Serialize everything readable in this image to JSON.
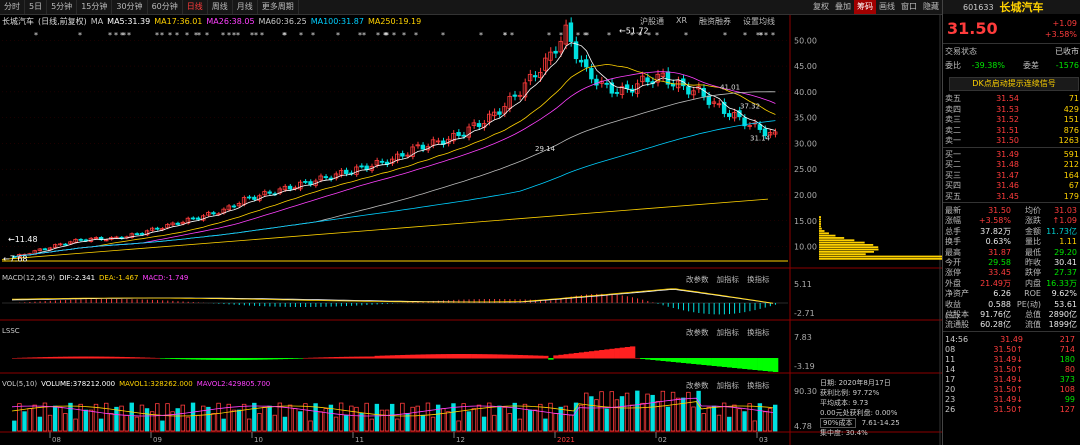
{
  "toolbar": {
    "tabs": [
      "分时",
      "5日",
      "5分钟",
      "15分钟",
      "30分钟",
      "60分钟",
      "日线",
      "周线",
      "月线",
      "更多周期"
    ],
    "active": "日线",
    "right": [
      "复权",
      "叠加",
      "筹码",
      "画线",
      "窗口",
      "隐藏"
    ]
  },
  "main": {
    "stock": "长城汽车",
    "mode": "(日线,前复权)",
    "ma": [
      {
        "label": "MA",
        "value": "",
        "color": "#c8c8c8"
      },
      {
        "label": "MA5:",
        "value": "31.39",
        "color": "#ffffff"
      },
      {
        "label": "MA17:",
        "value": "36.01",
        "color": "#ffd200"
      },
      {
        "label": "MA26:",
        "value": "38.05",
        "color": "#ff40ff"
      },
      {
        "label": "MA60:",
        "value": "36.25",
        "color": "#c8c8c8"
      },
      {
        "label": "MA100:",
        "value": "31.87",
        "color": "#00cfff"
      },
      {
        "label": "MA250:",
        "value": "19.19",
        "color": "#ffd200"
      }
    ],
    "links": [
      "沪股通",
      "XR",
      "融资融券",
      "设置均线"
    ],
    "axis": [
      "50.00",
      "45.00",
      "40.00",
      "35.00",
      "30.00",
      "25.00",
      "20.00",
      "15.00",
      "10.00"
    ],
    "marks": [
      "51.72",
      "41.01",
      "37.32",
      "31.14",
      "29.14",
      "11.48",
      "7.68"
    ]
  },
  "macd": {
    "title": "MACD(12,26,9)",
    "dif": "DIF:-2.341",
    "dea": "DEA:-1.467",
    "macd": "MACD:-1.749",
    "axis": [
      "5.11",
      "-2.71"
    ]
  },
  "lssc": {
    "title": "LSSC",
    "axis": [
      "7.83",
      "-3.19"
    ]
  },
  "vol": {
    "title": "VOL(5,10)",
    "volume": "VOLUME:378212.000",
    "mavol1": "MAVOL1:328262.000",
    "mavol2": "MAVOL2:429805.700",
    "axis": [
      "90.30",
      "4.78"
    ]
  },
  "panel_btns": [
    "改参数",
    "加指标",
    "换指标"
  ],
  "months": [
    "08",
    "09",
    "10",
    "11",
    "12",
    "2021",
    "02",
    "03"
  ],
  "chip": {
    "date": "日期: 2020年8月17日",
    "ratio": "获利比例: 97.72%",
    "avg": "平均成本: 9.73",
    "zero": "0.00元处获利盘: 0.00%",
    "cost": "90%成本",
    "costrange": "7.61-14.25",
    "conc": "集中度: 30.4%"
  },
  "chart_data": {
    "type": "candlestick",
    "title": "长城汽车 (日线,前复权)",
    "x_months": [
      "08",
      "09",
      "10",
      "11",
      "12",
      "2021",
      "02",
      "03"
    ],
    "ylim": [
      7,
      52
    ],
    "close_path": [
      8,
      9,
      10,
      11,
      11.5,
      11.5,
      12,
      13,
      14,
      15,
      16,
      17,
      19,
      20,
      21,
      22,
      23,
      24,
      25,
      26,
      27,
      29,
      30,
      31,
      33,
      35,
      38,
      42,
      46,
      51.72,
      44,
      41,
      40,
      42,
      43,
      41,
      40,
      37,
      35,
      33,
      31.5
    ],
    "markers": {
      "high": "51.72",
      "low_start": "7.68"
    }
  },
  "right_panel": {
    "code": "601633",
    "name": "长城汽车",
    "price": "31.50",
    "chg": "+1.09",
    "pct": "+3.58%",
    "status_label": "交易状态",
    "status": "已收市",
    "weibi_label": "委比",
    "weibi": "-39.38%",
    "weicha_label": "委差",
    "weicha": "-1576",
    "signal": "DK点启动提示连续信号",
    "asks": [
      {
        "l": "卖五",
        "p": "31.54",
        "v": "71"
      },
      {
        "l": "卖四",
        "p": "31.53",
        "v": "429"
      },
      {
        "l": "卖三",
        "p": "31.52",
        "v": "151"
      },
      {
        "l": "卖二",
        "p": "31.51",
        "v": "876"
      },
      {
        "l": "卖一",
        "p": "31.50",
        "v": "1263"
      }
    ],
    "bids": [
      {
        "l": "买一",
        "p": "31.49",
        "v": "591"
      },
      {
        "l": "买二",
        "p": "31.48",
        "v": "212"
      },
      {
        "l": "买三",
        "p": "31.47",
        "v": "164"
      },
      {
        "l": "买四",
        "p": "31.46",
        "v": "67"
      },
      {
        "l": "买五",
        "p": "31.45",
        "v": "179"
      }
    ],
    "stats": [
      {
        "a": "最新",
        "av": "31.50",
        "ac": "red",
        "b": "均价",
        "bv": "31.03",
        "bc": "red"
      },
      {
        "a": "涨幅",
        "av": "+3.58%",
        "ac": "red",
        "b": "涨跌",
        "bv": "↑1.09",
        "bc": "red"
      },
      {
        "a": "总手",
        "av": "37.82万",
        "ac": "wht",
        "b": "金额",
        "bv": "11.73亿",
        "bc": "cyan"
      },
      {
        "a": "换手",
        "av": "0.63%",
        "ac": "wht",
        "b": "量比",
        "bv": "1.11",
        "bc": "yel"
      },
      {
        "a": "最高",
        "av": "31.87",
        "ac": "red",
        "b": "最低",
        "bv": "29.20",
        "bc": "green"
      },
      {
        "a": "今开",
        "av": "29.58",
        "ac": "green",
        "b": "昨收",
        "bv": "30.41",
        "bc": "wht"
      },
      {
        "a": "涨停",
        "av": "33.45",
        "ac": "red",
        "b": "跌停",
        "bv": "27.37",
        "bc": "green"
      },
      {
        "a": "外盘",
        "av": "21.49万",
        "ac": "red",
        "b": "内盘",
        "bv": "16.33万",
        "bc": "green"
      },
      {
        "a": "净资产",
        "av": "6.26",
        "ac": "wht",
        "b": "ROE",
        "bv": "9.62%",
        "bc": "wht"
      },
      {
        "a": "收益(三)",
        "av": "0.588",
        "ac": "wht",
        "b": "PE(动)",
        "bv": "53.61",
        "bc": "wht"
      },
      {
        "a": "总股本",
        "av": "91.76亿",
        "ac": "wht",
        "b": "总值",
        "bv": "2890亿",
        "bc": "wht"
      },
      {
        "a": "流通股",
        "av": "60.28亿",
        "ac": "wht",
        "b": "流值",
        "bv": "1899亿",
        "bc": "wht"
      }
    ],
    "ticks": [
      {
        "t": "14:56",
        "p": "31.49",
        "v": "217",
        "pc": "red",
        "vc": "red",
        "arrow": ""
      },
      {
        "t": "08",
        "p": "31.50",
        "v": "714",
        "pc": "red",
        "vc": "red",
        "arrow": "↑"
      },
      {
        "t": "11",
        "p": "31.49",
        "v": "180",
        "pc": "red",
        "vc": "green",
        "arrow": "↓"
      },
      {
        "t": "14",
        "p": "31.50",
        "v": "80",
        "pc": "red",
        "vc": "red",
        "arrow": "↑"
      },
      {
        "t": "17",
        "p": "31.49",
        "v": "373",
        "pc": "red",
        "vc": "green",
        "arrow": "↓"
      },
      {
        "t": "20",
        "p": "31.50",
        "v": "108",
        "pc": "red",
        "vc": "red",
        "arrow": "↑"
      },
      {
        "t": "23",
        "p": "31.49",
        "v": "99",
        "pc": "red",
        "vc": "green",
        "arrow": "↓"
      },
      {
        "t": "26",
        "p": "31.50",
        "v": "127",
        "pc": "red",
        "vc": "red",
        "arrow": "↑"
      }
    ]
  }
}
